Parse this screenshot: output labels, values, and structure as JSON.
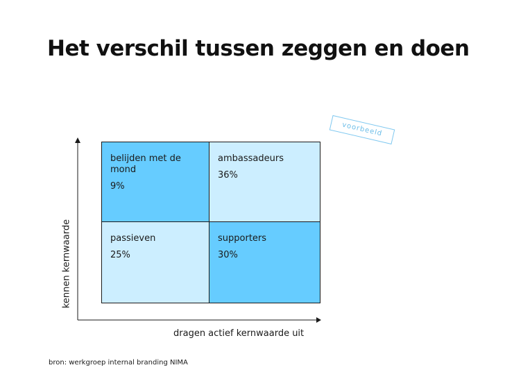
{
  "title": "Het verschil tussen zeggen en doen",
  "stamp": "voorbeeld",
  "axes": {
    "x_label": "dragen actief kernwaarde uit",
    "y_label": "kennen kernwaarde"
  },
  "quadrants": [
    {
      "label": "belijden met de mond",
      "value": "9%",
      "color": "#66ccff"
    },
    {
      "label": "ambassadeurs",
      "value": "36%",
      "color": "#cceeff"
    },
    {
      "label": "passieven",
      "value": "25%",
      "color": "#cceeff"
    },
    {
      "label": "supporters",
      "value": "30%",
      "color": "#66ccff"
    }
  ],
  "source": "bron: werkgroep internal branding NIMA"
}
